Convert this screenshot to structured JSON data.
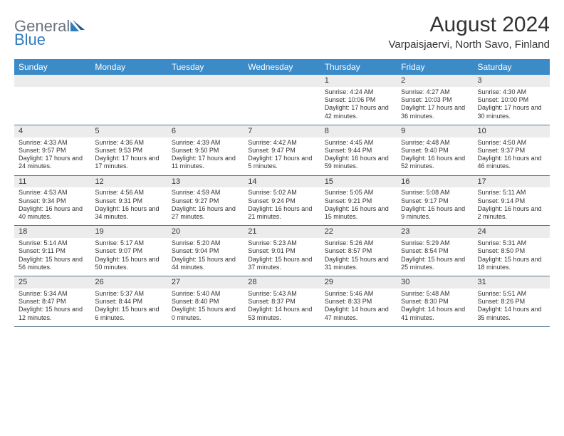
{
  "brand": {
    "general": "General",
    "blue": "Blue"
  },
  "title": "August 2024",
  "location": "Varpaisjaervi, North Savo, Finland",
  "colors": {
    "header_bg": "#3b8bc9",
    "header_fg": "#ffffff",
    "row_border": "#5a7893",
    "shade_bg": "#ececec",
    "page_bg": "#ffffff",
    "text": "#333333",
    "logo_gray": "#6b7280",
    "logo_blue": "#2f7bbf"
  },
  "dow": [
    "Sunday",
    "Monday",
    "Tuesday",
    "Wednesday",
    "Thursday",
    "Friday",
    "Saturday"
  ],
  "weeks": [
    [
      null,
      null,
      null,
      null,
      {
        "d": "1",
        "sr": "4:24 AM",
        "ss": "10:06 PM",
        "dl": "17 hours and 42 minutes."
      },
      {
        "d": "2",
        "sr": "4:27 AM",
        "ss": "10:03 PM",
        "dl": "17 hours and 36 minutes."
      },
      {
        "d": "3",
        "sr": "4:30 AM",
        "ss": "10:00 PM",
        "dl": "17 hours and 30 minutes."
      }
    ],
    [
      {
        "d": "4",
        "sr": "4:33 AM",
        "ss": "9:57 PM",
        "dl": "17 hours and 24 minutes."
      },
      {
        "d": "5",
        "sr": "4:36 AM",
        "ss": "9:53 PM",
        "dl": "17 hours and 17 minutes."
      },
      {
        "d": "6",
        "sr": "4:39 AM",
        "ss": "9:50 PM",
        "dl": "17 hours and 11 minutes."
      },
      {
        "d": "7",
        "sr": "4:42 AM",
        "ss": "9:47 PM",
        "dl": "17 hours and 5 minutes."
      },
      {
        "d": "8",
        "sr": "4:45 AM",
        "ss": "9:44 PM",
        "dl": "16 hours and 59 minutes."
      },
      {
        "d": "9",
        "sr": "4:48 AM",
        "ss": "9:40 PM",
        "dl": "16 hours and 52 minutes."
      },
      {
        "d": "10",
        "sr": "4:50 AM",
        "ss": "9:37 PM",
        "dl": "16 hours and 46 minutes."
      }
    ],
    [
      {
        "d": "11",
        "sr": "4:53 AM",
        "ss": "9:34 PM",
        "dl": "16 hours and 40 minutes."
      },
      {
        "d": "12",
        "sr": "4:56 AM",
        "ss": "9:31 PM",
        "dl": "16 hours and 34 minutes."
      },
      {
        "d": "13",
        "sr": "4:59 AM",
        "ss": "9:27 PM",
        "dl": "16 hours and 27 minutes."
      },
      {
        "d": "14",
        "sr": "5:02 AM",
        "ss": "9:24 PM",
        "dl": "16 hours and 21 minutes."
      },
      {
        "d": "15",
        "sr": "5:05 AM",
        "ss": "9:21 PM",
        "dl": "16 hours and 15 minutes."
      },
      {
        "d": "16",
        "sr": "5:08 AM",
        "ss": "9:17 PM",
        "dl": "16 hours and 9 minutes."
      },
      {
        "d": "17",
        "sr": "5:11 AM",
        "ss": "9:14 PM",
        "dl": "16 hours and 2 minutes."
      }
    ],
    [
      {
        "d": "18",
        "sr": "5:14 AM",
        "ss": "9:11 PM",
        "dl": "15 hours and 56 minutes."
      },
      {
        "d": "19",
        "sr": "5:17 AM",
        "ss": "9:07 PM",
        "dl": "15 hours and 50 minutes."
      },
      {
        "d": "20",
        "sr": "5:20 AM",
        "ss": "9:04 PM",
        "dl": "15 hours and 44 minutes."
      },
      {
        "d": "21",
        "sr": "5:23 AM",
        "ss": "9:01 PM",
        "dl": "15 hours and 37 minutes."
      },
      {
        "d": "22",
        "sr": "5:26 AM",
        "ss": "8:57 PM",
        "dl": "15 hours and 31 minutes."
      },
      {
        "d": "23",
        "sr": "5:29 AM",
        "ss": "8:54 PM",
        "dl": "15 hours and 25 minutes."
      },
      {
        "d": "24",
        "sr": "5:31 AM",
        "ss": "8:50 PM",
        "dl": "15 hours and 18 minutes."
      }
    ],
    [
      {
        "d": "25",
        "sr": "5:34 AM",
        "ss": "8:47 PM",
        "dl": "15 hours and 12 minutes."
      },
      {
        "d": "26",
        "sr": "5:37 AM",
        "ss": "8:44 PM",
        "dl": "15 hours and 6 minutes."
      },
      {
        "d": "27",
        "sr": "5:40 AM",
        "ss": "8:40 PM",
        "dl": "15 hours and 0 minutes."
      },
      {
        "d": "28",
        "sr": "5:43 AM",
        "ss": "8:37 PM",
        "dl": "14 hours and 53 minutes."
      },
      {
        "d": "29",
        "sr": "5:46 AM",
        "ss": "8:33 PM",
        "dl": "14 hours and 47 minutes."
      },
      {
        "d": "30",
        "sr": "5:48 AM",
        "ss": "8:30 PM",
        "dl": "14 hours and 41 minutes."
      },
      {
        "d": "31",
        "sr": "5:51 AM",
        "ss": "8:26 PM",
        "dl": "14 hours and 35 minutes."
      }
    ]
  ],
  "labels": {
    "sunrise": "Sunrise: ",
    "sunset": "Sunset: ",
    "daylight": "Daylight: "
  }
}
